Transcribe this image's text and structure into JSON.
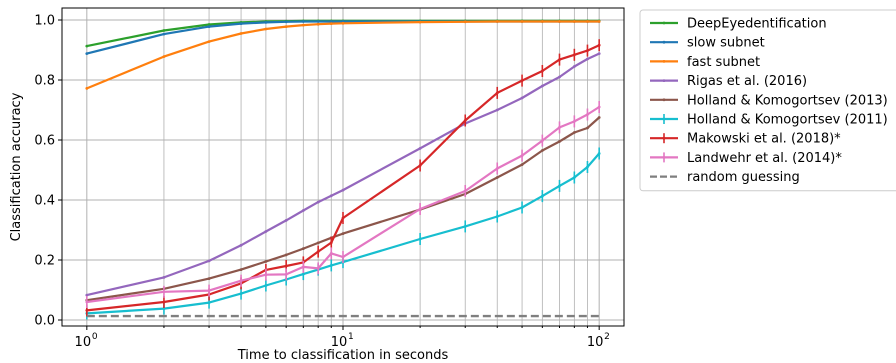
{
  "chart_data": {
    "type": "line",
    "title": "",
    "xlabel": "Time to classification in seconds",
    "ylabel": "Classification accuracy",
    "x_scale": "log",
    "xlim": [
      0.8,
      125
    ],
    "ylim": [
      -0.02,
      1.04
    ],
    "x_ticks": [
      1,
      10,
      100
    ],
    "x_tick_labels": [
      "10",
      "10",
      "10"
    ],
    "x_tick_exponents": [
      "0",
      "1",
      "2"
    ],
    "y_ticks": [
      0.0,
      0.2,
      0.4,
      0.6,
      0.8,
      1.0
    ],
    "y_tick_labels": [
      "0.0",
      "0.2",
      "0.4",
      "0.6",
      "0.8",
      "1.0"
    ],
    "grid": true,
    "legend_position": "outside-right",
    "series": [
      {
        "name": "DeepEyedentification",
        "color": "#2ca02c",
        "style": "solid",
        "error_bars": false,
        "x": [
          1,
          2,
          3,
          4,
          5,
          6,
          7,
          8,
          9,
          10,
          20,
          30,
          40,
          50,
          60,
          70,
          80,
          90,
          100
        ],
        "y": [
          0.913,
          0.965,
          0.985,
          0.992,
          0.995,
          0.996,
          0.997,
          0.997,
          0.997,
          0.997,
          0.997,
          0.997,
          0.997,
          0.997,
          0.997,
          0.997,
          0.997,
          0.997,
          0.997
        ]
      },
      {
        "name": "slow subnet",
        "color": "#1f77b4",
        "style": "solid",
        "error_bars": false,
        "x": [
          1,
          2,
          3,
          4,
          5,
          6,
          7,
          8,
          9,
          10,
          20,
          30,
          40,
          50,
          60,
          70,
          80,
          90,
          100
        ],
        "y": [
          0.888,
          0.953,
          0.978,
          0.988,
          0.992,
          0.994,
          0.995,
          0.995,
          0.995,
          0.995,
          0.995,
          0.995,
          0.995,
          0.995,
          0.995,
          0.995,
          0.995,
          0.995,
          0.995
        ]
      },
      {
        "name": "fast subnet",
        "color": "#ff7f0e",
        "style": "solid",
        "error_bars": false,
        "x": [
          1,
          2,
          3,
          4,
          5,
          6,
          7,
          8,
          9,
          10,
          20,
          30,
          40,
          50,
          60,
          70,
          80,
          90,
          100
        ],
        "y": [
          0.772,
          0.878,
          0.928,
          0.955,
          0.97,
          0.978,
          0.983,
          0.986,
          0.988,
          0.989,
          0.993,
          0.994,
          0.995,
          0.995,
          0.995,
          0.995,
          0.995,
          0.995,
          0.995
        ]
      },
      {
        "name": "Rigas et al. (2016)",
        "color": "#9467bd",
        "style": "solid",
        "error_bars": false,
        "x": [
          1,
          2,
          3,
          4,
          5,
          6,
          7,
          8,
          9,
          10,
          20,
          30,
          40,
          50,
          60,
          70,
          80,
          90,
          100
        ],
        "y": [
          0.083,
          0.142,
          0.197,
          0.249,
          0.295,
          0.332,
          0.365,
          0.393,
          0.414,
          0.433,
          0.572,
          0.655,
          0.7,
          0.74,
          0.78,
          0.81,
          0.845,
          0.87,
          0.888
        ]
      },
      {
        "name": "Holland & Komogortsev (2013)",
        "color": "#8c564b",
        "style": "solid",
        "error_bars": false,
        "x": [
          1,
          2,
          3,
          4,
          5,
          6,
          7,
          8,
          9,
          10,
          20,
          30,
          40,
          50,
          60,
          70,
          80,
          90,
          100
        ],
        "y": [
          0.066,
          0.104,
          0.138,
          0.168,
          0.195,
          0.217,
          0.238,
          0.257,
          0.274,
          0.288,
          0.368,
          0.42,
          0.475,
          0.518,
          0.565,
          0.595,
          0.625,
          0.64,
          0.675
        ]
      },
      {
        "name": "Holland & Komogortsev (2011)",
        "color": "#17becf",
        "style": "solid",
        "error_bars": true,
        "x": [
          1,
          2,
          3,
          4,
          5,
          6,
          7,
          8,
          9,
          10,
          20,
          30,
          40,
          50,
          60,
          70,
          80,
          90,
          100
        ],
        "y": [
          0.022,
          0.038,
          0.058,
          0.088,
          0.115,
          0.135,
          0.153,
          0.168,
          0.182,
          0.193,
          0.27,
          0.312,
          0.345,
          0.375,
          0.413,
          0.447,
          0.475,
          0.51,
          0.555
        ]
      },
      {
        "name": "Makowski et al. (2018)*",
        "color": "#d62728",
        "style": "solid",
        "error_bars": true,
        "x": [
          1,
          2,
          3,
          4,
          5,
          6,
          7,
          8,
          9,
          10,
          20,
          30,
          40,
          50,
          60,
          70,
          80,
          90,
          100
        ],
        "y": [
          0.032,
          0.06,
          0.085,
          0.122,
          0.167,
          0.18,
          0.192,
          0.228,
          0.258,
          0.34,
          0.515,
          0.665,
          0.757,
          0.798,
          0.83,
          0.868,
          0.884,
          0.898,
          0.916
        ]
      },
      {
        "name": "Landwehr et al. (2014)*",
        "color": "#e377c2",
        "style": "solid",
        "error_bars": true,
        "x": [
          1,
          2,
          3,
          4,
          5,
          6,
          7,
          8,
          9,
          10,
          20,
          30,
          40,
          50,
          60,
          70,
          80,
          90,
          100
        ],
        "y": [
          0.06,
          0.094,
          0.098,
          0.131,
          0.151,
          0.152,
          0.177,
          0.172,
          0.222,
          0.21,
          0.37,
          0.43,
          0.505,
          0.548,
          0.598,
          0.642,
          0.662,
          0.685,
          0.71
        ]
      },
      {
        "name": "random guessing",
        "color": "#7f7f7f",
        "style": "dashed",
        "error_bars": false,
        "x": [
          1,
          100
        ],
        "y": [
          0.013,
          0.013
        ]
      }
    ]
  }
}
